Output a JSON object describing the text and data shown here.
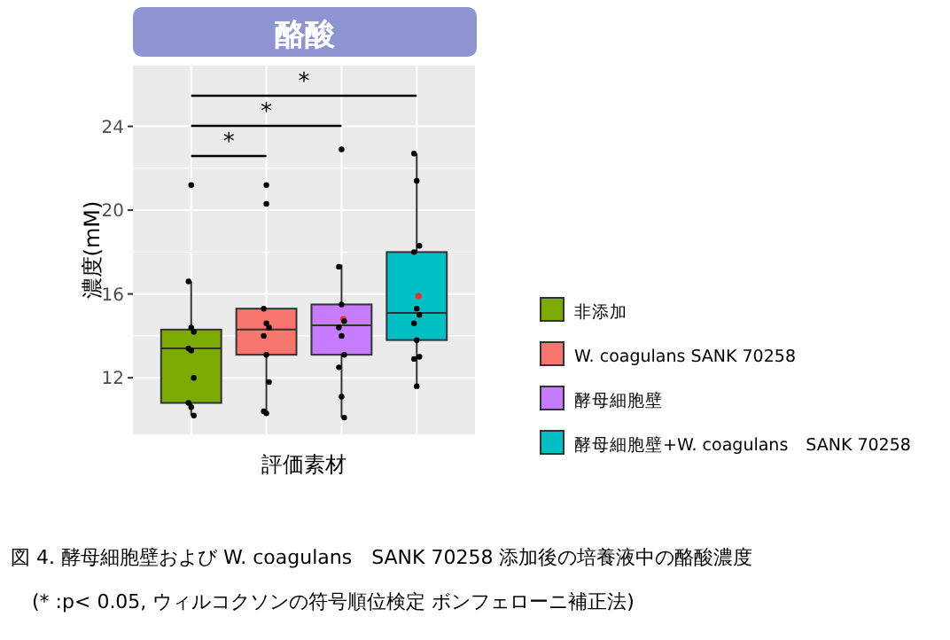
{
  "chart_data": {
    "type": "box",
    "title": "酪酸",
    "xlabel": "評価素材",
    "ylabel": "濃度(mM)",
    "categories": [
      null
    ],
    "series": [
      {
        "name": "非添加",
        "color": "#7caa00",
        "boxes": [
          {
            "low": 10.2,
            "q1": 10.8,
            "median": 13.4,
            "q3": 14.3,
            "high": 16.6,
            "outliers": [
              21.2
            ]
          }
        ]
      },
      {
        "name": "W. coagulans SANK 70258",
        "color": "#f8766d",
        "boxes": [
          {
            "low": 10.3,
            "q1": 13.1,
            "median": 14.3,
            "q3": 15.3,
            "high": 15.3,
            "outliers": [
              21.2,
              20.3
            ]
          }
        ]
      },
      {
        "name": "酵母細胞壁",
        "color": "#c77cff",
        "boxes": [
          {
            "low": 10.1,
            "q1": 13.1,
            "median": 14.5,
            "q3": 15.5,
            "high": 17.4,
            "mean": 14.8,
            "outliers": [
              22.9
            ]
          }
        ]
      },
      {
        "name": "酵母細胞壁+W. coagulans　SANK 70258",
        "color": "#00bfc4",
        "boxes": [
          {
            "low": 11.6,
            "q1": 13.8,
            "median": 15.1,
            "q3": 18.0,
            "high": 22.7,
            "mean": 15.9
          }
        ]
      },
      {
        "type": "scatter",
        "color": "#000000",
        "x": [
          null,
          null,
          null,
          null,
          null,
          null,
          null,
          null,
          null
        ],
        "values": [
          16.6,
          14.4,
          14.2,
          13.4,
          13.3,
          12.0,
          10.8,
          10.6,
          10.2
        ]
      },
      {
        "type": "scatter",
        "color": "#000000",
        "x": [
          null,
          null,
          null,
          null,
          null,
          null,
          null,
          null
        ],
        "values": [
          15.3,
          14.6,
          14.4,
          14.0,
          13.1,
          11.8,
          10.4,
          10.3
        ]
      },
      {
        "type": "scatter",
        "color": "#000000",
        "x": [
          null,
          null,
          null,
          null,
          null,
          null,
          null,
          null,
          null
        ],
        "values": [
          17.3,
          15.5,
          14.7,
          14.4,
          14.0,
          13.1,
          12.5,
          11.1,
          10.1
        ]
      },
      {
        "type": "scatter",
        "color": "#000000",
        "x": [
          null,
          null,
          null,
          null,
          null,
          null,
          null,
          null,
          null,
          null,
          null
        ],
        "values": [
          22.7,
          21.4,
          18.3,
          18.0,
          15.3,
          15.0,
          14.6,
          13.8,
          13.0,
          12.9,
          11.6
        ]
      }
    ],
    "ylim": [
      9.3,
      26.9
    ],
    "yticks": [
      12,
      16,
      20,
      24
    ],
    "grid": true,
    "legend": "right",
    "marker": "circle",
    "annotations": [
      "*",
      "*",
      "*",
      "図 4. 酵母細胞壁および W. coagulans　SANK 70258 添加後の培養液中の酪酸濃度",
      "(* :p< 0.05, ウィルコクソンの符号順位検定 ボンフェローニ補正法)"
    ]
  }
}
